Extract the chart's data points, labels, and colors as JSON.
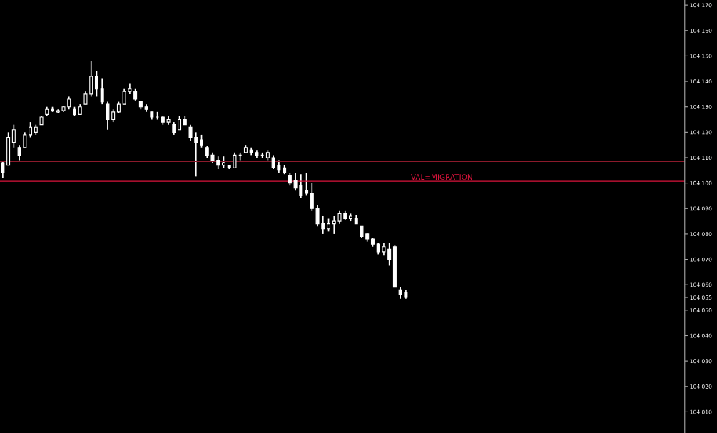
{
  "chart_data": {
    "type": "candlestick",
    "categories": [
      null,
      null,
      null,
      null,
      null,
      null,
      null,
      null,
      null,
      null,
      null,
      null,
      null,
      null,
      null,
      null,
      null,
      null,
      null,
      null,
      null,
      null,
      null,
      null,
      null,
      null,
      null,
      null,
      null,
      null,
      null,
      null,
      null,
      null,
      null,
      null,
      null,
      null,
      null,
      null,
      null,
      null,
      null,
      null,
      null,
      null,
      null,
      null,
      null,
      null,
      null,
      null,
      null,
      null,
      null,
      null,
      null,
      null,
      null,
      null,
      null,
      null,
      null,
      null,
      null,
      null,
      null,
      null,
      null,
      null,
      null,
      null,
      null,
      null,
      null,
      null,
      null,
      null,
      null,
      null,
      null,
      null,
      null,
      null,
      null,
      null,
      null,
      null,
      null,
      null,
      null,
      null,
      null,
      null,
      null,
      null,
      null,
      null,
      null,
      null,
      null,
      null,
      null,
      null,
      null,
      null,
      null,
      null,
      null,
      null,
      null,
      null,
      null,
      null,
      null,
      null,
      null,
      null,
      null,
      null,
      null,
      null,
      null,
      null
    ],
    "ohlc": [
      [
        104108,
        104108.5,
        104102,
        104104
      ],
      [
        104107,
        104120,
        104107,
        104118
      ],
      [
        104116,
        104123,
        104114,
        104121
      ],
      [
        104114,
        104115,
        104109,
        104111
      ],
      [
        104114,
        104120,
        104114,
        104119
      ],
      [
        104119,
        104124,
        104118,
        104122
      ],
      [
        104120,
        104123,
        104119,
        104122
      ],
      [
        104123,
        104126.5,
        104123,
        104126
      ],
      [
        104127,
        104130,
        104126.5,
        104129
      ],
      [
        104129,
        104130,
        104128,
        104128.5
      ],
      [
        104128,
        104129,
        104127.5,
        104128.5
      ],
      [
        104128.5,
        104130.5,
        104128,
        104130
      ],
      [
        104130,
        104134,
        104129,
        104133
      ],
      [
        104129,
        104130,
        104126.5,
        104127
      ],
      [
        104127,
        104131,
        104127,
        104130
      ],
      [
        104131,
        104136,
        104131,
        104135
      ],
      [
        104135,
        104148,
        104134,
        104142
      ],
      [
        104142,
        104144,
        104134,
        104137
      ],
      [
        104137,
        104141,
        104131,
        104132
      ],
      [
        104131,
        104132,
        104121,
        104125
      ],
      [
        104125,
        104129,
        104124,
        104128
      ],
      [
        104128,
        104132,
        104127.5,
        104131
      ],
      [
        104131,
        104137,
        104131,
        104136
      ],
      [
        104136,
        104139,
        104135,
        104137
      ],
      [
        104136,
        104137,
        104132.5,
        104133
      ],
      [
        104132,
        104132,
        104129,
        104130
      ],
      [
        104130,
        104131,
        104128,
        104129
      ],
      [
        104128,
        104128,
        104125,
        104126
      ],
      [
        104126,
        104128,
        104125,
        104126
      ],
      [
        104126,
        104126.5,
        104123,
        104124
      ],
      [
        104124,
        104126.5,
        104123,
        104125
      ],
      [
        104123,
        104124,
        104119,
        104120
      ],
      [
        104121,
        104126.5,
        104121,
        104125
      ],
      [
        104125,
        104126.5,
        104123,
        104123
      ],
      [
        104122,
        104123,
        104116.5,
        104118
      ],
      [
        104118,
        104120,
        104102.6,
        104116
      ],
      [
        104117,
        104119,
        104114,
        104115
      ],
      [
        104114,
        104114.5,
        104110,
        104111
      ],
      [
        104111,
        104112,
        104108,
        104109
      ],
      [
        104109,
        104110.5,
        104105.5,
        104107
      ],
      [
        104107,
        104110.5,
        104106,
        104108
      ],
      [
        104107,
        104107,
        104105.5,
        104106
      ],
      [
        104106,
        104112,
        104106,
        104111
      ],
      [
        104111,
        104112,
        104109,
        104111
      ],
      [
        104112,
        104115,
        104112,
        104114
      ],
      [
        104113,
        104114,
        104111,
        104112
      ],
      [
        104112,
        104113,
        104110,
        104111
      ],
      [
        104111,
        104112,
        104110,
        104111
      ],
      [
        104110,
        104113,
        104109,
        104112
      ],
      [
        104110,
        104111,
        104105.5,
        104106
      ],
      [
        104107,
        104109,
        104104,
        104105
      ],
      [
        104106,
        104107,
        104103.5,
        104104
      ],
      [
        104103,
        104104,
        104099,
        104100
      ],
      [
        104101,
        104104,
        104097,
        104098
      ],
      [
        104099,
        104103.5,
        104094,
        104095
      ],
      [
        104097,
        104104,
        104095,
        104096
      ],
      [
        104096,
        104100,
        104089,
        104090
      ],
      [
        104090,
        104091.5,
        104083,
        104084
      ],
      [
        104084,
        104087,
        104080,
        104082
      ],
      [
        104082,
        104086,
        104081,
        104084
      ],
      [
        104084,
        104087,
        104080,
        104085
      ],
      [
        104085,
        104089,
        104084,
        104088
      ],
      [
        104088,
        104089,
        104085.5,
        104086
      ],
      [
        104086,
        104088,
        104085,
        104087
      ],
      [
        104086,
        104087.5,
        104084,
        104084
      ],
      [
        104083,
        104083,
        104078.5,
        104079
      ],
      [
        104080,
        104080.5,
        104077,
        104078
      ],
      [
        104078,
        104078.5,
        104075,
        104076
      ],
      [
        104076,
        104076.5,
        104072,
        104073
      ],
      [
        104073,
        104076.5,
        104071.5,
        104075
      ],
      [
        104074,
        104076.5,
        104067.5,
        104070
      ],
      [
        104075,
        104075.5,
        104059,
        104059
      ],
      [
        104058,
        104059,
        104054.5,
        104056
      ],
      [
        104057,
        104058,
        104054.5,
        104055
      ],
      null,
      null,
      null,
      null,
      null,
      null,
      null,
      null,
      null,
      null,
      null,
      null,
      null,
      null,
      null,
      null,
      null,
      null,
      null,
      null,
      null,
      null,
      null,
      null,
      null,
      null,
      null,
      null,
      null,
      null,
      null,
      null,
      null,
      null,
      null,
      null,
      null,
      null,
      null,
      null,
      null,
      null,
      null,
      null,
      null,
      null,
      null,
      null,
      null,
      null
    ],
    "color": "#ffffff",
    "ylim": [
      104001.7,
      104172
    ],
    "yticks": [
      {
        "value": 104010,
        "label": "104'010"
      },
      {
        "value": 104020,
        "label": "104'020"
      },
      {
        "value": 104030,
        "label": "104'030"
      },
      {
        "value": 104040,
        "label": "104'040"
      },
      {
        "value": 104050,
        "label": "104'050"
      },
      {
        "value": 104055,
        "label": "104'055"
      },
      {
        "value": 104060,
        "label": "104'060"
      },
      {
        "value": 104070,
        "label": "104'070"
      },
      {
        "value": 104080,
        "label": "104'080"
      },
      {
        "value": 104090,
        "label": "104'090"
      },
      {
        "value": 104100,
        "label": "104'100"
      },
      {
        "value": 104110,
        "label": "104'110"
      },
      {
        "value": 104120,
        "label": "104'120"
      },
      {
        "value": 104130,
        "label": "104'130"
      },
      {
        "value": 104140,
        "label": "104'140"
      },
      {
        "value": 104150,
        "label": "104'150"
      },
      {
        "value": 104160,
        "label": "104'160"
      },
      {
        "value": 104170,
        "label": "104'170"
      }
    ],
    "tick_labels": "y",
    "grid": false,
    "ref_lines": [
      {
        "axis": "y",
        "value": 104108.5,
        "color": "#8b1a2b"
      },
      {
        "axis": "y",
        "value": 104100.7,
        "label": "VAL=MIGRATION",
        "color": "#dc143c"
      }
    ]
  }
}
